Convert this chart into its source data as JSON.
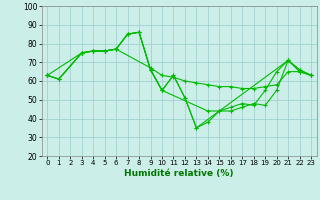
{
  "xlabel": "Humidité relative (%)",
  "background_color": "#cceee8",
  "grid_color": "#99cccc",
  "line_color": "#00bb00",
  "xlim": [
    -0.5,
    23.5
  ],
  "ylim": [
    20,
    100
  ],
  "yticks": [
    20,
    30,
    40,
    50,
    60,
    70,
    80,
    90,
    100
  ],
  "xticks": [
    0,
    1,
    2,
    3,
    4,
    5,
    6,
    7,
    8,
    9,
    10,
    11,
    12,
    13,
    14,
    15,
    16,
    17,
    18,
    19,
    20,
    21,
    22,
    23
  ],
  "series": [
    {
      "x": [
        0,
        1,
        3,
        4,
        5,
        6,
        7,
        8,
        9,
        10,
        11,
        12,
        13,
        21,
        22,
        23
      ],
      "y": [
        63,
        61,
        75,
        76,
        76,
        77,
        85,
        86,
        66,
        55,
        63,
        51,
        35,
        71,
        66,
        63
      ]
    },
    {
      "x": [
        0,
        1,
        3,
        4,
        5,
        6,
        7,
        8,
        9,
        10,
        14,
        15,
        16,
        17,
        18,
        19,
        20,
        21,
        22,
        23
      ],
      "y": [
        63,
        61,
        75,
        76,
        76,
        77,
        85,
        86,
        66,
        55,
        44,
        44,
        46,
        48,
        47,
        55,
        65,
        71,
        66,
        63
      ]
    },
    {
      "x": [
        0,
        3,
        4,
        5,
        6,
        7,
        8,
        9,
        10,
        11,
        12,
        13,
        14,
        15,
        16,
        17,
        18,
        19,
        20,
        21,
        22,
        23
      ],
      "y": [
        63,
        75,
        76,
        76,
        77,
        85,
        86,
        66,
        55,
        63,
        51,
        35,
        38,
        44,
        44,
        46,
        48,
        47,
        55,
        71,
        65,
        63
      ]
    },
    {
      "x": [
        0,
        1,
        3,
        4,
        5,
        6,
        9,
        10,
        11,
        12,
        13,
        14,
        15,
        16,
        17,
        18,
        19,
        20,
        21,
        22,
        23
      ],
      "y": [
        63,
        61,
        75,
        76,
        76,
        77,
        67,
        63,
        62,
        60,
        59,
        58,
        57,
        57,
        56,
        56,
        57,
        58,
        65,
        65,
        63
      ]
    }
  ]
}
